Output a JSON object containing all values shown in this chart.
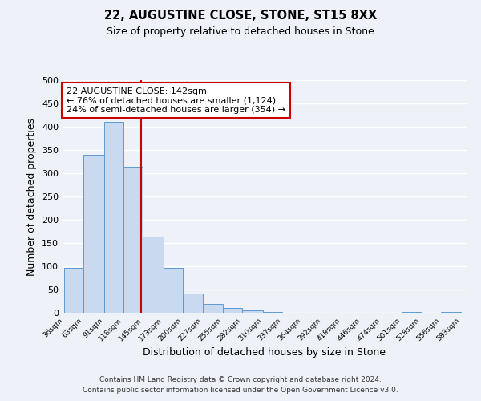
{
  "title": "22, AUGUSTINE CLOSE, STONE, ST15 8XX",
  "subtitle": "Size of property relative to detached houses in Stone",
  "xlabel": "Distribution of detached houses by size in Stone",
  "ylabel": "Number of detached properties",
  "bar_edges": [
    36,
    63,
    91,
    118,
    145,
    173,
    200,
    227,
    255,
    282,
    310,
    337,
    364,
    392,
    419,
    446,
    474,
    501,
    528,
    556,
    583
  ],
  "bar_heights": [
    97,
    340,
    411,
    314,
    163,
    97,
    42,
    19,
    10,
    5,
    2,
    0,
    0,
    0,
    0,
    0,
    0,
    2,
    0,
    2
  ],
  "bar_color": "#c8d9f0",
  "bar_edge_color": "#5b9bd5",
  "property_value": 142,
  "vline_color": "#cc0000",
  "annotation_line1": "22 AUGUSTINE CLOSE: 142sqm",
  "annotation_line2": "← 76% of detached houses are smaller (1,124)",
  "annotation_line3": "24% of semi-detached houses are larger (354) →",
  "annotation_box_color": "#ffffff",
  "annotation_box_edge_color": "#cc0000",
  "ylim": [
    0,
    500
  ],
  "yticks": [
    0,
    50,
    100,
    150,
    200,
    250,
    300,
    350,
    400,
    450,
    500
  ],
  "background_color": "#eef2f8",
  "grid_color": "#ffffff",
  "footer_line1": "Contains HM Land Registry data © Crown copyright and database right 2024.",
  "footer_line2": "Contains public sector information licensed under the Open Government Licence v3.0."
}
